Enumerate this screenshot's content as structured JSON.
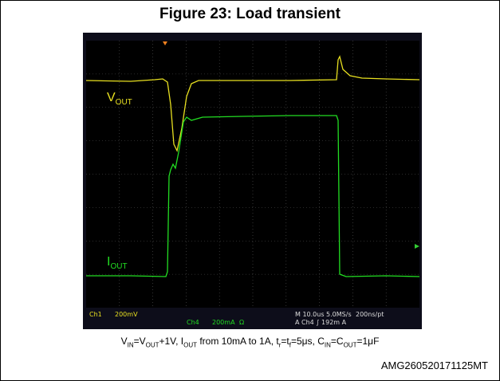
{
  "figure": {
    "title": "Figure 23: Load transient",
    "vout_label": [
      "V",
      "OUT"
    ],
    "iout_label": [
      "I",
      "OUT"
    ],
    "scope_status": {
      "ch1": "Ch1",
      "ch1_scale": "200mV",
      "ch4": "Ch4",
      "ch4_scale": "200mA",
      "ch4_coupling": "Ω",
      "timebase": "M 10.0us 5.0MS/s",
      "resolution": "200ns/pt",
      "trigger": "A Ch4 ∫ 192m A"
    },
    "caption": [
      "V",
      "IN",
      "=V",
      "OUT",
      "+1V, I",
      "OUT",
      " from 10mA to 1A, t",
      "r",
      "=t",
      "f",
      "=5μs, C",
      "IN",
      "=C",
      "OUT",
      "=1μF"
    ],
    "figure_id": "AMG260520171125MT"
  }
}
